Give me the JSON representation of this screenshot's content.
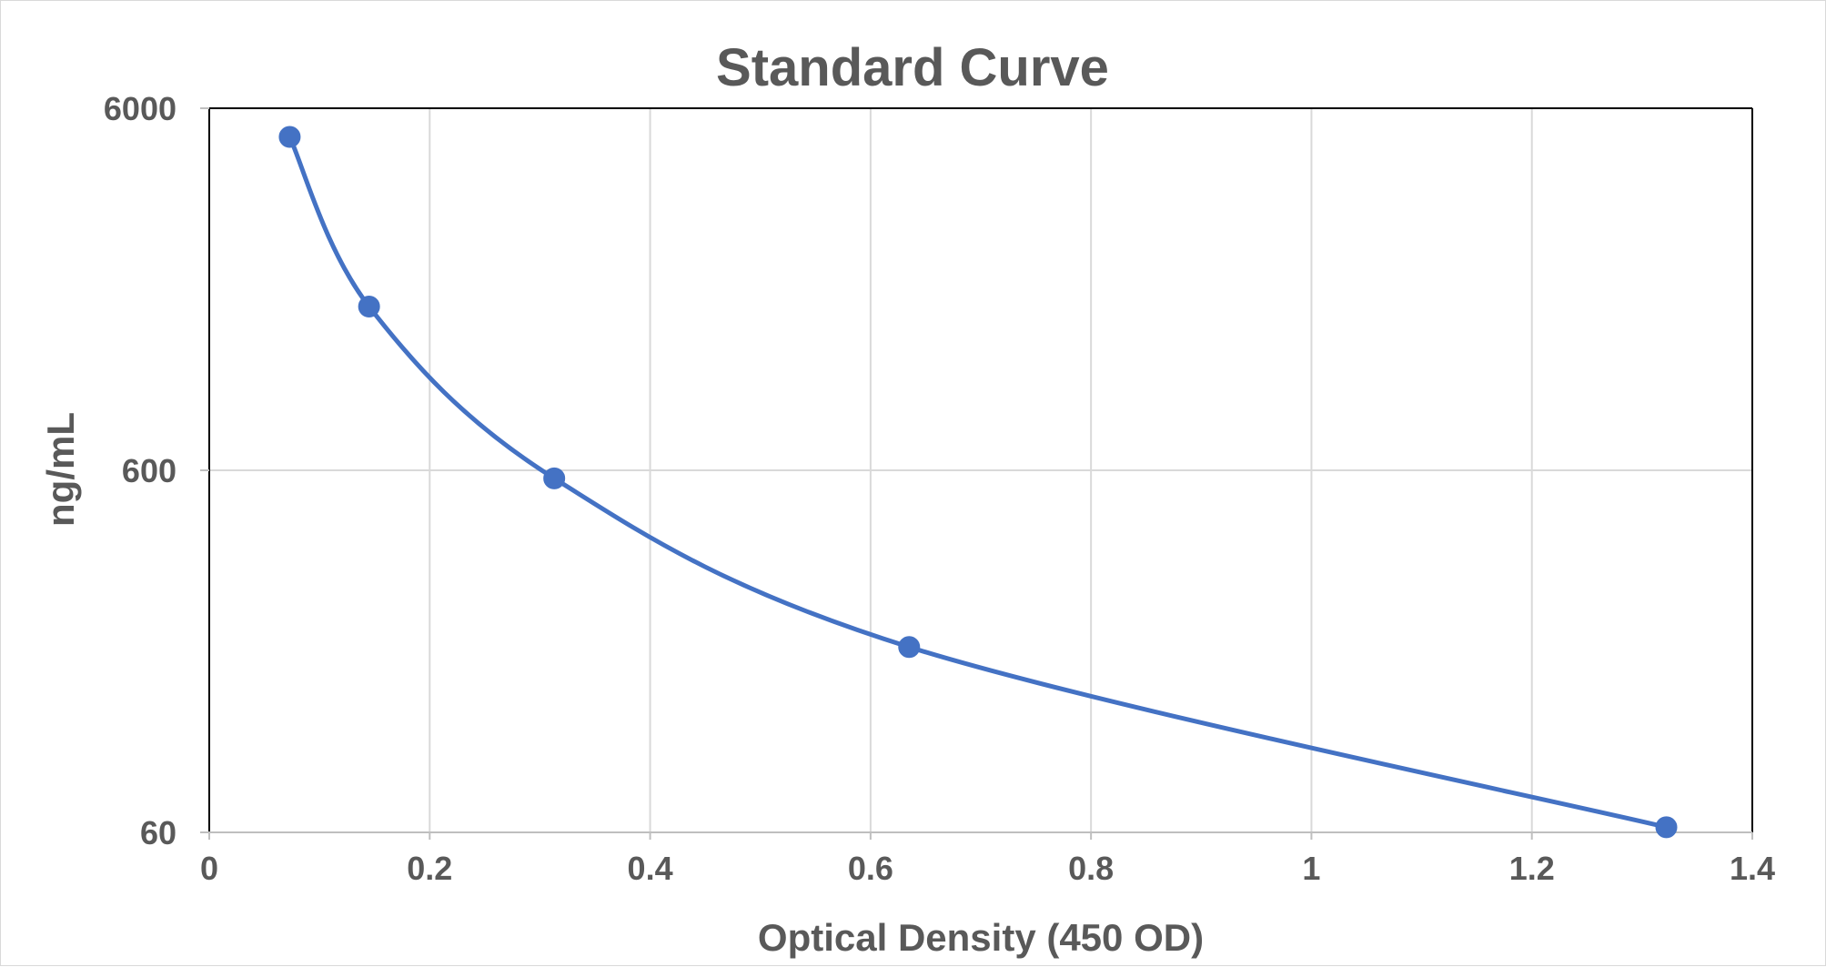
{
  "chart_data": {
    "type": "scatter",
    "title": "Standard Curve",
    "xlabel": "Optical Density (450 OD)",
    "ylabel": "ng/mL",
    "xlim": [
      0,
      1.4
    ],
    "ylim": [
      60,
      6000
    ],
    "y_scale": "log",
    "x_ticks": [
      0,
      0.2,
      0.4,
      0.6,
      0.8,
      1,
      1.2,
      1.4
    ],
    "y_ticks": [
      60,
      600,
      6000
    ],
    "x_tick_labels": [
      "0",
      "0.2",
      "0.4",
      "0.6",
      "0.8",
      "1",
      "1.2",
      "1.4"
    ],
    "y_tick_labels": [
      "60",
      "600",
      "6000"
    ],
    "grid": true,
    "smoothed_line": true,
    "series": [
      {
        "color": "#4472c4",
        "points": [
          {
            "x": 0.073,
            "y": 5000
          },
          {
            "x": 0.145,
            "y": 1700
          },
          {
            "x": 0.313,
            "y": 570
          },
          {
            "x": 0.635,
            "y": 195
          },
          {
            "x": 1.322,
            "y": 62
          }
        ]
      }
    ]
  }
}
